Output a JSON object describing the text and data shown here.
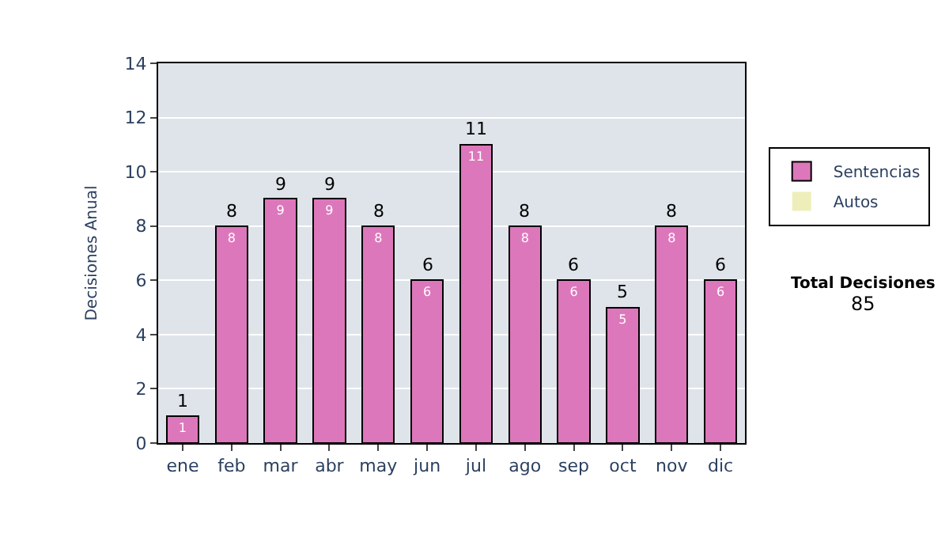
{
  "chart_data": {
    "type": "bar",
    "stacked": true,
    "ylabel": "Decisiones Anual",
    "categories": [
      "ene",
      "feb",
      "mar",
      "abr",
      "may",
      "jun",
      "jul",
      "ago",
      "sep",
      "oct",
      "nov",
      "dic"
    ],
    "series": [
      {
        "name": "Sentencias",
        "color": "#dd77bb",
        "values": [
          1,
          8,
          9,
          9,
          8,
          6,
          11,
          8,
          6,
          5,
          8,
          6
        ],
        "value_labels": [
          "1",
          "8",
          "9",
          "9",
          "8",
          "6",
          "11",
          "8",
          "6",
          "5",
          "8",
          "6"
        ]
      },
      {
        "name": "Autos",
        "color": "#eeeebb",
        "values": [
          0,
          0,
          0,
          0,
          0,
          0,
          0,
          0,
          0,
          0,
          0,
          0
        ]
      }
    ],
    "totals": [
      "1",
      "8",
      "9",
      "9",
      "8",
      "6",
      "11",
      "8",
      "6",
      "5",
      "8",
      "6"
    ],
    "ylim": [
      0,
      14
    ],
    "yticks": [
      0,
      2,
      4,
      6,
      8,
      10,
      12,
      14
    ],
    "grid": "y",
    "legend": "right",
    "annotations": [
      "Total Decisiones",
      "85"
    ]
  }
}
